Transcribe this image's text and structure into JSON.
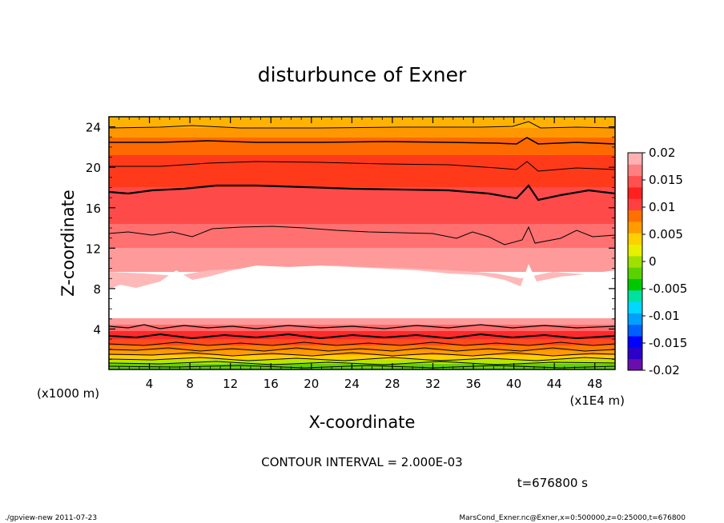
{
  "chart_data": {
    "type": "contour",
    "title": "disturbunce of Exner",
    "xlabel": "X-coordinate",
    "ylabel": "Z-coordinate",
    "x_unit_label": "(x1E4 m)",
    "y_unit_label": "(x1000 m)",
    "xlim": [
      0,
      50
    ],
    "ylim": [
      0,
      25
    ],
    "x_ticks": [
      "4",
      "8",
      "12",
      "16",
      "20",
      "24",
      "28",
      "32",
      "36",
      "40",
      "44",
      "48"
    ],
    "y_ticks": [
      "4",
      "8",
      "12",
      "16",
      "20",
      "24"
    ],
    "colorbar": {
      "range": [
        -0.02,
        0.02
      ],
      "labels": [
        "0.02",
        "0.015",
        "0.01",
        "0.005",
        "0",
        "-0.005",
        "-0.01",
        "-0.015",
        "-0.02"
      ],
      "colors": [
        "#6a0dad",
        "#2b00c8",
        "#0000ff",
        "#005fff",
        "#00a0ff",
        "#00d8ff",
        "#00e0a0",
        "#00c800",
        "#5ad200",
        "#a0e000",
        "#e6f000",
        "#ffd000",
        "#ff9c00",
        "#ff7000",
        "#ff4040",
        "#ff2020",
        "#ff5050",
        "#ff8080",
        "#ffb0b0"
      ]
    },
    "vertical_profile": [
      {
        "z": 0.0,
        "value": 0.002
      },
      {
        "z": 0.6,
        "value": 0.004
      },
      {
        "z": 1.2,
        "value": 0.008
      },
      {
        "z": 2.0,
        "value": 0.011
      },
      {
        "z": 3.0,
        "value": 0.013
      },
      {
        "z": 4.0,
        "value": 0.014
      },
      {
        "z": 5.0,
        "value": 0.017
      },
      {
        "z": 8.0,
        "value": 0.02
      },
      {
        "z": 10.0,
        "value": 0.019
      },
      {
        "z": 13.0,
        "value": 0.017
      },
      {
        "z": 18.0,
        "value": 0.015
      },
      {
        "z": 22.5,
        "value": 0.012
      },
      {
        "z": 24.8,
        "value": 0.01
      }
    ],
    "contour_interval": "CONTOUR INTERVAL = 2.000E-03",
    "time_label": "t=676800 s"
  },
  "footer": {
    "left": "./gpview-new   2011-07-23",
    "right": "MarsCond_Exner.nc@Exner,x=0:500000,z=0:25000,t=676800"
  }
}
